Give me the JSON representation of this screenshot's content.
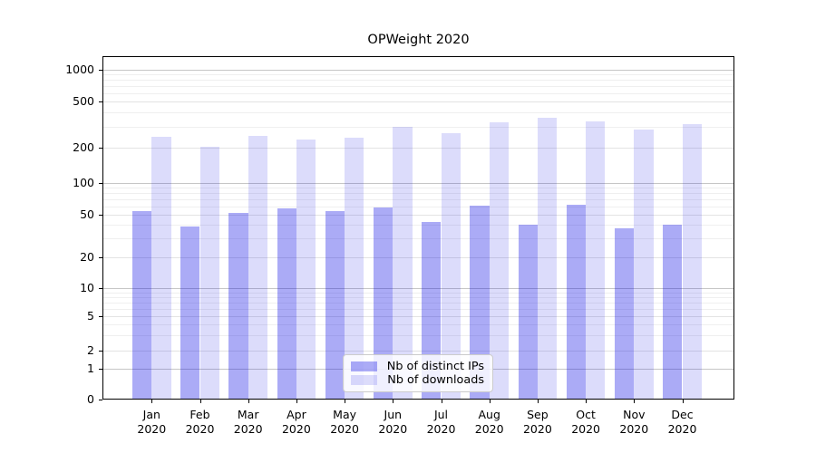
{
  "title": "OPWeight 2020",
  "legend": {
    "items": [
      {
        "label": "Nb of distinct IPs",
        "color": "rgba(10,10,230,0.34)"
      },
      {
        "label": "Nb of downloads",
        "color": "rgba(10,10,230,0.14)"
      }
    ]
  },
  "chart_data": {
    "type": "bar",
    "title": "OPWeight 2020",
    "xlabel": "",
    "ylabel": "",
    "yscale": "symlog",
    "ylim": [
      0,
      1340
    ],
    "grid": true,
    "legend_position": "lower center (inside plot)",
    "months": [
      "Jan",
      "Feb",
      "Mar",
      "Apr",
      "May",
      "Jun",
      "Jul",
      "Aug",
      "Sep",
      "Oct",
      "Nov",
      "Dec"
    ],
    "year_label": "2020",
    "yticks": [
      0,
      1,
      2,
      5,
      10,
      20,
      50,
      100,
      200,
      500,
      1000
    ],
    "series": [
      {
        "name": "Nb of distinct IPs",
        "color": "rgba(10,10,230,0.34)",
        "values": [
          54,
          39,
          52,
          58,
          54,
          59,
          43,
          61,
          40,
          62,
          37,
          40
        ]
      },
      {
        "name": "Nb of downloads",
        "color": "rgba(10,10,230,0.14)",
        "values": [
          250,
          205,
          255,
          235,
          245,
          305,
          265,
          330,
          360,
          335,
          285,
          320
        ]
      }
    ]
  },
  "colors": {
    "major_grid": "#c6c6c6",
    "labeled_minor_grid": "#e3e3e3",
    "minor_grid": "#efefef",
    "axis": "#000000"
  }
}
